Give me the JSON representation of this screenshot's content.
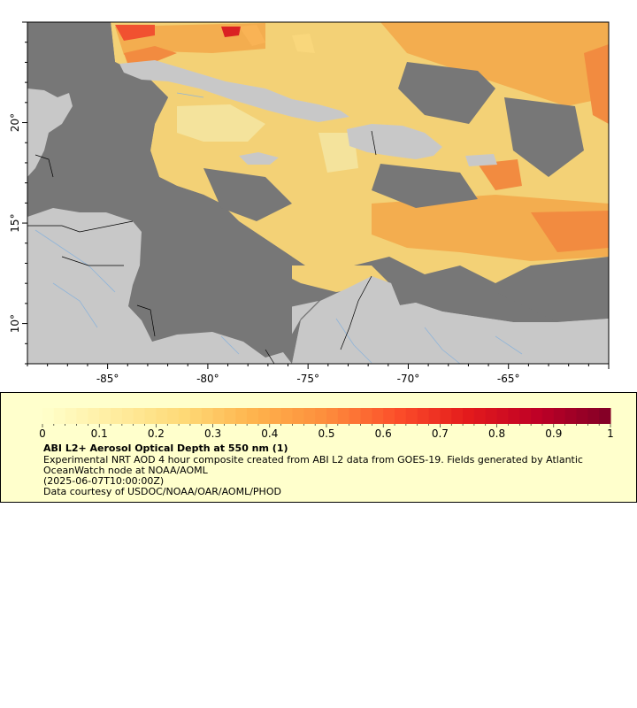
{
  "map": {
    "lon_min": -89,
    "lon_max": -60,
    "lat_min": 8,
    "lat_max": 25,
    "lon_ticks": [
      {
        "value": -85,
        "label": "-85°"
      },
      {
        "value": -80,
        "label": "-80°"
      },
      {
        "value": -75,
        "label": "-75°"
      },
      {
        "value": -70,
        "label": "-70°"
      },
      {
        "value": -65,
        "label": "-65°"
      }
    ],
    "lat_ticks": [
      {
        "value": 20,
        "label": "20°"
      },
      {
        "value": 15,
        "label": "15°"
      },
      {
        "value": 10,
        "label": "10°"
      }
    ],
    "colors": {
      "ocean_nodata": "#777777",
      "land": "#c8c8c8",
      "rivers": "#8fb4d9",
      "borders": "#000000"
    }
  },
  "legend": {
    "title": "ABI L2+ Aerosol Optical Depth at 550 nm (1)",
    "description": "Experimental NRT AOD 4 hour composite created from ABI L2 data from GOES-19. Fields generated by Atlantic OceanWatch node at NOAA/AOML",
    "timestamp": "(2025-06-07T10:00:00Z)",
    "credit": "Data courtesy of USDOC/NOAA/OAR/AOML/PHOD",
    "colorbar": {
      "min": 0,
      "max": 1,
      "labels": [
        "0",
        "0.1",
        "0.2",
        "0.3",
        "0.4",
        "0.5",
        "0.6",
        "0.7",
        "0.8",
        "0.9",
        "1"
      ],
      "stops": [
        "#ffffcc",
        "#ffeda0",
        "#fed976",
        "#feb24c",
        "#fd8d3c",
        "#fc4e2a",
        "#e31a1c",
        "#bd0026",
        "#800026"
      ]
    }
  }
}
